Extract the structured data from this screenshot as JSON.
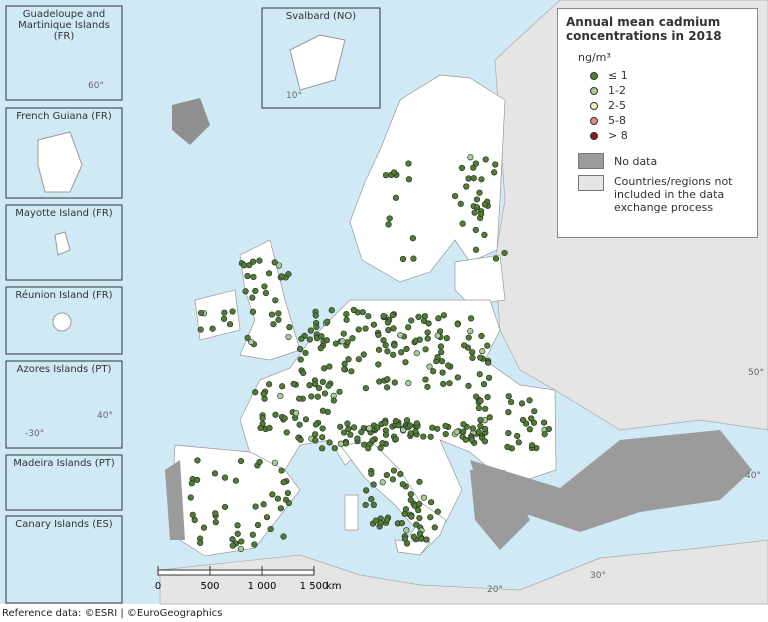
{
  "insets": [
    "Guadeloupe and Martinique Islands (FR)",
    "French Guiana (FR)",
    "Mayotte Island (FR)",
    "Réunion Island (FR)",
    "Azores Islands (PT)",
    "Madeira Islands (PT)",
    "Canary Islands (ES)"
  ],
  "svalbard": "Svalbard (NO)",
  "legend": {
    "title": "Annual mean cadmium concentrations in 2018",
    "unit": "ng/m³",
    "classes": [
      {
        "label": "≤ 1",
        "color": "#4f7f2c"
      },
      {
        "label": "1-2",
        "color": "#a8d08d"
      },
      {
        "label": "2-5",
        "color": "#f4f1b5"
      },
      {
        "label": "5-8",
        "color": "#e9877c"
      },
      {
        "label": "> 8",
        "color": "#8b1a1a"
      }
    ],
    "no_data": "No data",
    "not_included": "Countries/regions not included in the data exchange process"
  },
  "scale": {
    "labels": [
      "0",
      "500",
      "1 000",
      "1 500"
    ],
    "unit": "km"
  },
  "graticule": [
    "-30°",
    "40°",
    "20°",
    "30°",
    "40°",
    "50°",
    "60°",
    "10°"
  ],
  "footer": "Reference data: ©ESRI | ©EuroGeographics"
}
